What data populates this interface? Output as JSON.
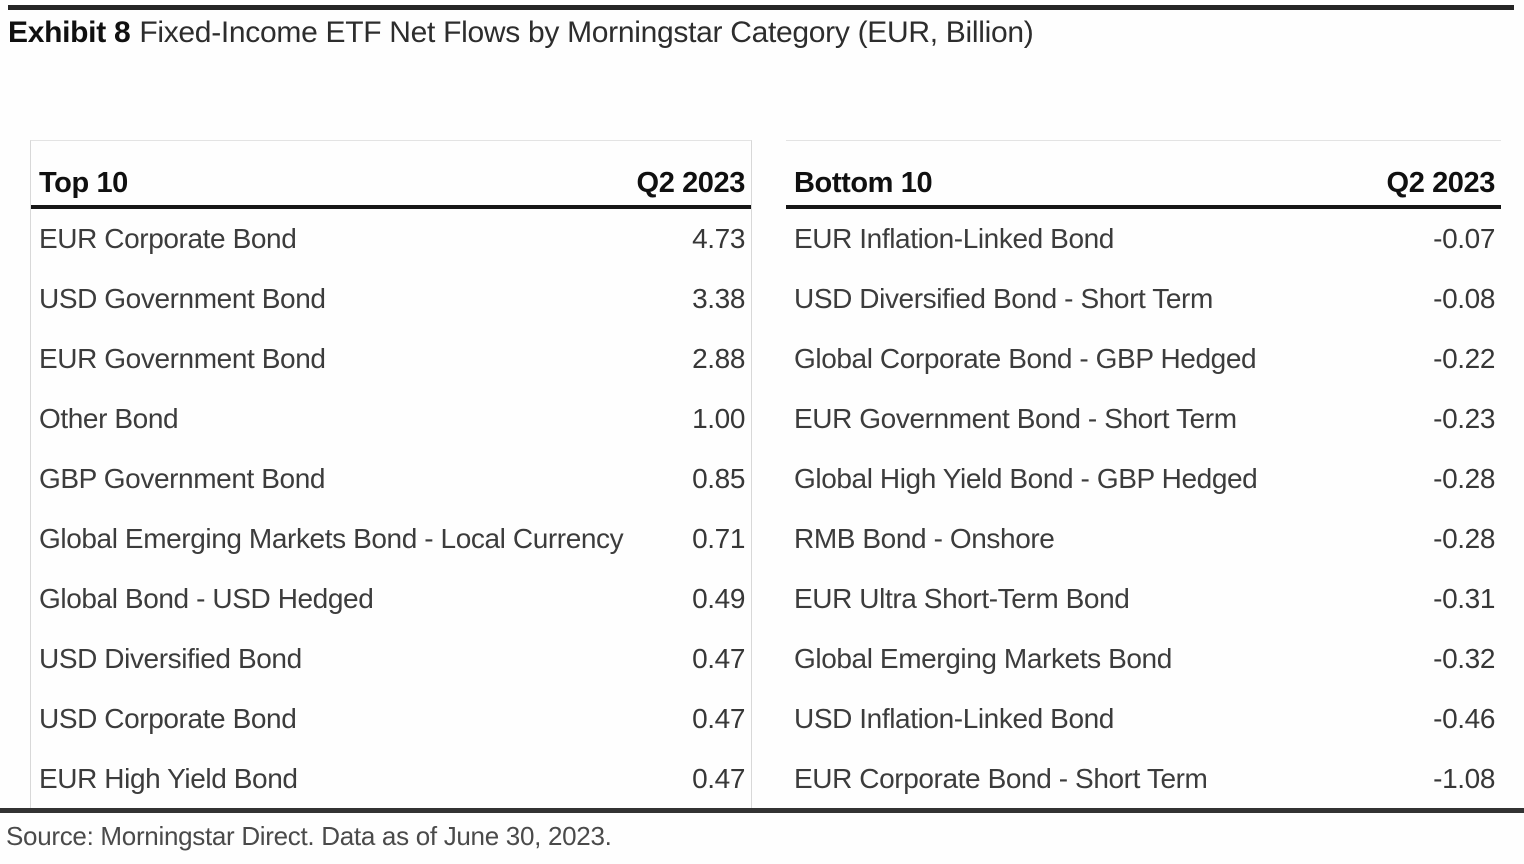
{
  "title": {
    "label": "Exhibit 8",
    "text": "Fixed-Income ETF Net Flows by Morningstar Category (EUR, Billion)"
  },
  "tables": [
    {
      "name_header": "Top 10",
      "value_header": "Q2 2023",
      "rows": [
        {
          "category": "EUR Corporate Bond",
          "value": "4.73"
        },
        {
          "category": "USD Government Bond",
          "value": "3.38"
        },
        {
          "category": "EUR Government Bond",
          "value": "2.88"
        },
        {
          "category": "Other Bond",
          "value": "1.00"
        },
        {
          "category": "GBP Government Bond",
          "value": "0.85"
        },
        {
          "category": "Global Emerging Markets Bond - Local Currency",
          "value": "0.71"
        },
        {
          "category": "Global Bond - USD Hedged",
          "value": "0.49"
        },
        {
          "category": "USD Diversified Bond",
          "value": "0.47"
        },
        {
          "category": "USD Corporate Bond",
          "value": "0.47"
        },
        {
          "category": "EUR High Yield Bond",
          "value": "0.47"
        }
      ]
    },
    {
      "name_header": "Bottom 10",
      "value_header": "Q2 2023",
      "rows": [
        {
          "category": "EUR Inflation-Linked Bond",
          "value": "-0.07"
        },
        {
          "category": "USD Diversified Bond - Short Term",
          "value": "-0.08"
        },
        {
          "category": "Global Corporate Bond - GBP Hedged",
          "value": "-0.22"
        },
        {
          "category": "EUR Government Bond - Short Term",
          "value": "-0.23"
        },
        {
          "category": "Global High Yield Bond - GBP Hedged",
          "value": "-0.28"
        },
        {
          "category": "RMB Bond - Onshore",
          "value": "-0.28"
        },
        {
          "category": "EUR Ultra Short-Term Bond",
          "value": "-0.31"
        },
        {
          "category": "Global Emerging Markets Bond",
          "value": "-0.32"
        },
        {
          "category": "USD Inflation-Linked Bond",
          "value": "-0.46"
        },
        {
          "category": "EUR Corporate Bond - Short Term",
          "value": "-1.08"
        }
      ]
    }
  ],
  "footer": {
    "source": "Source: Morningstar Direct. Data as of June 30, 2023."
  },
  "colors": {
    "text_primary": "#101010",
    "text_body": "#3c3c3c",
    "rule_dark": "#262626",
    "table_border": "#d8d8d8",
    "background": "#fefefe"
  },
  "chart_data": [
    {
      "type": "table",
      "title": "Top 10",
      "columns": [
        "Morningstar Category",
        "Q2 2023"
      ],
      "unit": "EUR, Billion",
      "rows": [
        [
          "EUR Corporate Bond",
          4.73
        ],
        [
          "USD Government Bond",
          3.38
        ],
        [
          "EUR Government Bond",
          2.88
        ],
        [
          "Other Bond",
          1.0
        ],
        [
          "GBP Government Bond",
          0.85
        ],
        [
          "Global Emerging Markets Bond - Local Currency",
          0.71
        ],
        [
          "Global Bond - USD Hedged",
          0.49
        ],
        [
          "USD Diversified Bond",
          0.47
        ],
        [
          "USD Corporate Bond",
          0.47
        ],
        [
          "EUR High Yield Bond",
          0.47
        ]
      ]
    },
    {
      "type": "table",
      "title": "Bottom 10",
      "columns": [
        "Morningstar Category",
        "Q2 2023"
      ],
      "unit": "EUR, Billion",
      "rows": [
        [
          "EUR Inflation-Linked Bond",
          -0.07
        ],
        [
          "USD Diversified Bond - Short Term",
          -0.08
        ],
        [
          "Global Corporate Bond - GBP Hedged",
          -0.22
        ],
        [
          "EUR Government Bond - Short Term",
          -0.23
        ],
        [
          "Global High Yield Bond - GBP Hedged",
          -0.28
        ],
        [
          "RMB Bond - Onshore",
          -0.28
        ],
        [
          "EUR Ultra Short-Term Bond",
          -0.31
        ],
        [
          "Global Emerging Markets Bond",
          -0.32
        ],
        [
          "USD Inflation-Linked Bond",
          -0.46
        ],
        [
          "EUR Corporate Bond - Short Term",
          -1.08
        ]
      ]
    }
  ]
}
